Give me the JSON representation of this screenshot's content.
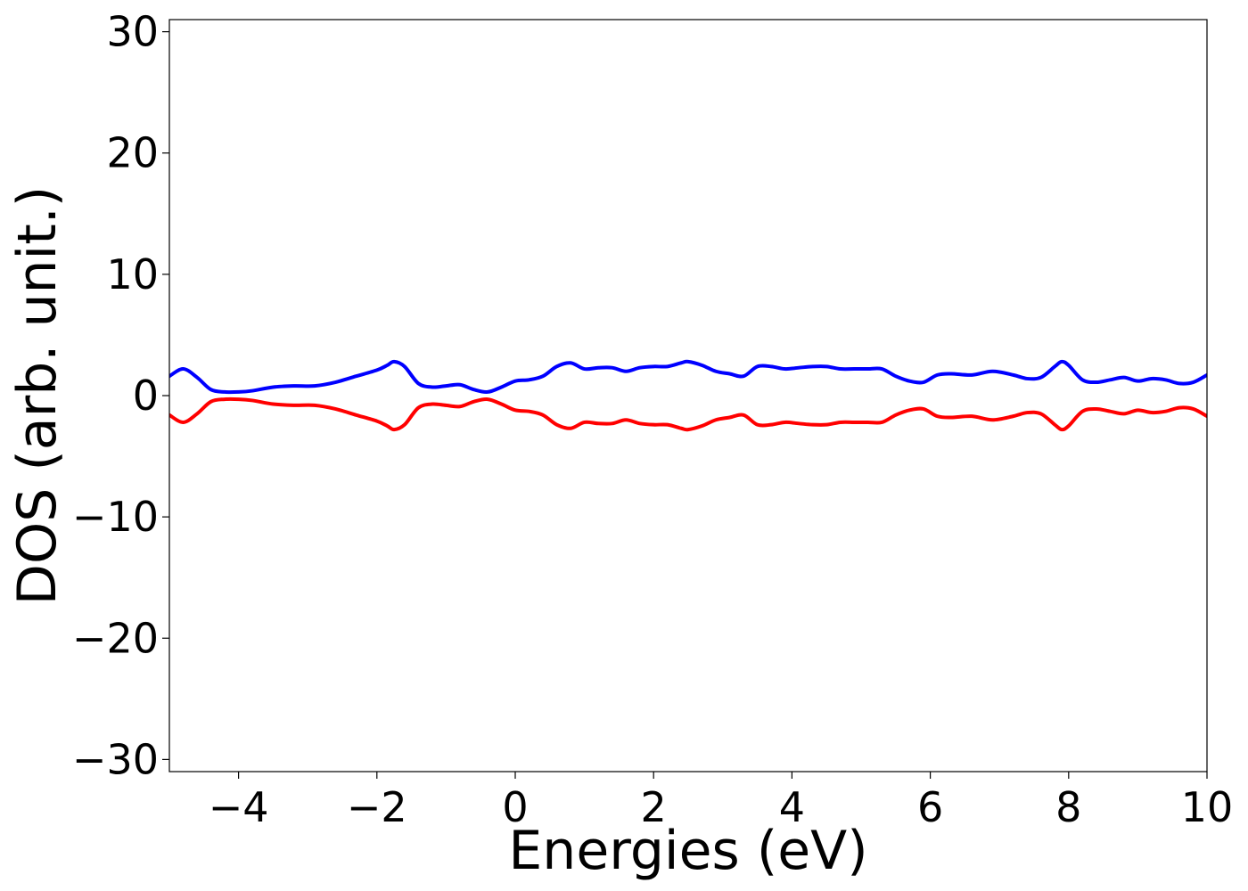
{
  "chart_data": {
    "type": "line",
    "xlabel": "Energies (eV)",
    "ylabel": "DOS (arb. unit.)",
    "xlim": [
      -5,
      10
    ],
    "ylim": [
      -31,
      31
    ],
    "x_ticks": [
      -4,
      -2,
      0,
      2,
      4,
      6,
      8,
      10
    ],
    "x_tick_labels": [
      "−4",
      "−2",
      "0",
      "2",
      "4",
      "6",
      "8",
      "10"
    ],
    "y_ticks": [
      30,
      20,
      10,
      0,
      -10,
      -20,
      -30
    ],
    "y_tick_labels": [
      "30",
      "20",
      "10",
      "0",
      "−10",
      "−20",
      "−30"
    ],
    "grid": false,
    "series": [
      {
        "color": "#0000ff",
        "x": [
          -5.0,
          -4.8,
          -4.6,
          -4.4,
          -4.2,
          -4.0,
          -3.8,
          -3.5,
          -3.2,
          -2.9,
          -2.6,
          -2.3,
          -2.0,
          -1.85,
          -1.75,
          -1.6,
          -1.4,
          -1.2,
          -1.0,
          -0.8,
          -0.6,
          -0.4,
          -0.2,
          0.0,
          0.2,
          0.4,
          0.6,
          0.8,
          1.0,
          1.2,
          1.4,
          1.6,
          1.8,
          2.0,
          2.2,
          2.4,
          2.5,
          2.7,
          2.9,
          3.1,
          3.3,
          3.5,
          3.7,
          3.9,
          4.1,
          4.3,
          4.5,
          4.7,
          4.9,
          5.1,
          5.3,
          5.5,
          5.7,
          5.9,
          6.1,
          6.3,
          6.6,
          6.9,
          7.2,
          7.4,
          7.6,
          7.8,
          7.9,
          8.0,
          8.2,
          8.4,
          8.6,
          8.8,
          9.0,
          9.2,
          9.4,
          9.6,
          9.8,
          10.0
        ],
        "y": [
          1.6,
          2.2,
          1.5,
          0.5,
          0.3,
          0.3,
          0.4,
          0.7,
          0.8,
          0.8,
          1.1,
          1.6,
          2.1,
          2.5,
          2.8,
          2.4,
          1.0,
          0.7,
          0.8,
          0.9,
          0.5,
          0.3,
          0.7,
          1.2,
          1.3,
          1.6,
          2.4,
          2.7,
          2.2,
          2.3,
          2.3,
          2.0,
          2.3,
          2.4,
          2.4,
          2.7,
          2.8,
          2.5,
          2.0,
          1.8,
          1.6,
          2.4,
          2.4,
          2.2,
          2.3,
          2.4,
          2.4,
          2.2,
          2.2,
          2.2,
          2.2,
          1.6,
          1.2,
          1.1,
          1.7,
          1.8,
          1.7,
          2.0,
          1.7,
          1.4,
          1.5,
          2.4,
          2.8,
          2.5,
          1.3,
          1.1,
          1.3,
          1.5,
          1.2,
          1.4,
          1.3,
          1.0,
          1.1,
          1.7
        ]
      },
      {
        "color": "#ff0000",
        "x": [
          -5.0,
          -4.8,
          -4.6,
          -4.4,
          -4.2,
          -4.0,
          -3.8,
          -3.5,
          -3.2,
          -2.9,
          -2.6,
          -2.3,
          -2.0,
          -1.85,
          -1.75,
          -1.6,
          -1.4,
          -1.2,
          -1.0,
          -0.8,
          -0.6,
          -0.4,
          -0.2,
          0.0,
          0.2,
          0.4,
          0.6,
          0.8,
          1.0,
          1.2,
          1.4,
          1.6,
          1.8,
          2.0,
          2.2,
          2.4,
          2.5,
          2.7,
          2.9,
          3.1,
          3.3,
          3.5,
          3.7,
          3.9,
          4.1,
          4.3,
          4.5,
          4.7,
          4.9,
          5.1,
          5.3,
          5.5,
          5.7,
          5.9,
          6.1,
          6.3,
          6.6,
          6.9,
          7.2,
          7.4,
          7.6,
          7.8,
          7.9,
          8.0,
          8.2,
          8.4,
          8.6,
          8.8,
          9.0,
          9.2,
          9.4,
          9.6,
          9.8,
          10.0
        ],
        "y": [
          -1.6,
          -2.2,
          -1.5,
          -0.5,
          -0.3,
          -0.3,
          -0.4,
          -0.7,
          -0.8,
          -0.8,
          -1.1,
          -1.6,
          -2.1,
          -2.5,
          -2.8,
          -2.4,
          -1.0,
          -0.7,
          -0.8,
          -0.9,
          -0.5,
          -0.3,
          -0.7,
          -1.2,
          -1.3,
          -1.6,
          -2.4,
          -2.7,
          -2.2,
          -2.3,
          -2.3,
          -2.0,
          -2.3,
          -2.4,
          -2.4,
          -2.7,
          -2.8,
          -2.5,
          -2.0,
          -1.8,
          -1.6,
          -2.4,
          -2.4,
          -2.2,
          -2.3,
          -2.4,
          -2.4,
          -2.2,
          -2.2,
          -2.2,
          -2.2,
          -1.6,
          -1.2,
          -1.1,
          -1.7,
          -1.8,
          -1.7,
          -2.0,
          -1.7,
          -1.4,
          -1.5,
          -2.4,
          -2.8,
          -2.5,
          -1.3,
          -1.1,
          -1.3,
          -1.5,
          -1.2,
          -1.4,
          -1.3,
          -1.0,
          -1.1,
          -1.7
        ]
      }
    ]
  }
}
